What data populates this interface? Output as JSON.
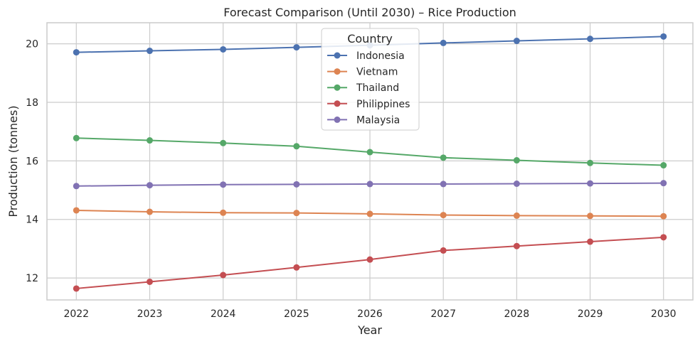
{
  "chart_data": {
    "type": "line",
    "title": "Forecast Comparison (Until 2030) – Rice Production",
    "xlabel": "Year",
    "ylabel": "Production (tonnes)",
    "x": [
      2022,
      2023,
      2024,
      2025,
      2026,
      2027,
      2028,
      2029,
      2030
    ],
    "xlim": [
      2021.6,
      2030.4
    ],
    "ylim": [
      11.25,
      20.72
    ],
    "yticks": [
      12,
      14,
      16,
      18,
      20
    ],
    "grid": true,
    "legend": {
      "title": "Country",
      "placement": "top-center"
    },
    "series": [
      {
        "name": "Indonesia",
        "color": "#4c72b0",
        "values": [
          19.71,
          19.76,
          19.81,
          19.88,
          19.95,
          20.03,
          20.1,
          20.17,
          20.25
        ]
      },
      {
        "name": "Vietnam",
        "color": "#dd8452",
        "values": [
          14.31,
          14.26,
          14.23,
          14.22,
          14.19,
          14.15,
          14.13,
          14.12,
          14.11
        ]
      },
      {
        "name": "Thailand",
        "color": "#55a868",
        "values": [
          16.78,
          16.7,
          16.61,
          16.5,
          16.3,
          16.11,
          16.02,
          15.93,
          15.85
        ]
      },
      {
        "name": "Philippines",
        "color": "#c44e52",
        "values": [
          11.64,
          11.87,
          12.1,
          12.36,
          12.63,
          12.94,
          13.09,
          13.24,
          13.39
        ]
      },
      {
        "name": "Malaysia",
        "color": "#8172b3",
        "values": [
          15.14,
          15.17,
          15.19,
          15.2,
          15.21,
          15.21,
          15.22,
          15.23,
          15.24
        ]
      }
    ]
  }
}
